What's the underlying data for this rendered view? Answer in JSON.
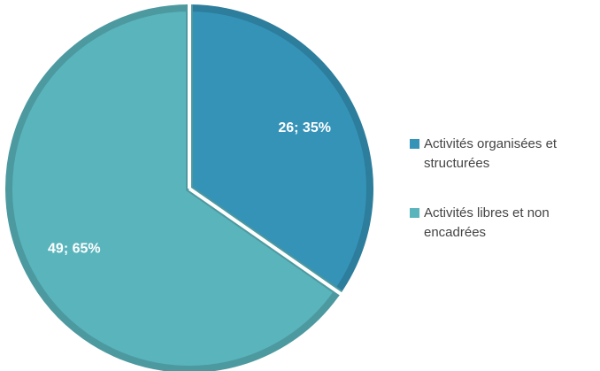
{
  "chart_data": {
    "type": "pie",
    "categories": [
      "Activités organisées et structurées",
      "Activités libres et non encadrées"
    ],
    "values": [
      26,
      49
    ],
    "value_labels": [
      "26; 35%",
      "49; 65%"
    ],
    "colors": [
      "#3593b8",
      "#5ab4bc"
    ],
    "legend": "right"
  }
}
